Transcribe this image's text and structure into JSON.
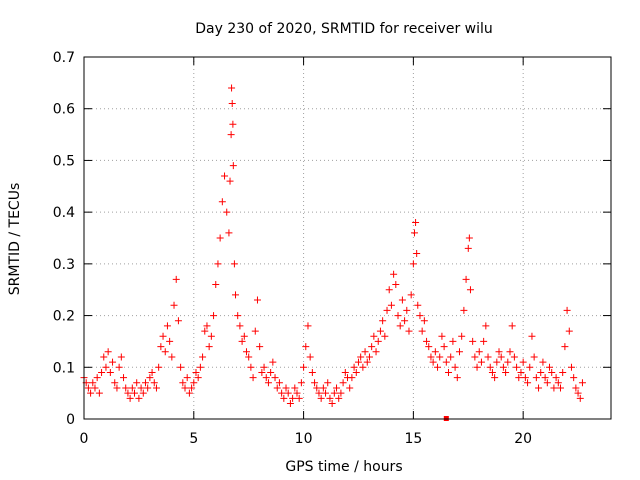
{
  "chart_data": {
    "type": "scatter",
    "title": "Day 230 of 2020, SRMTID for receiver wilu",
    "xlabel": "GPS time / hours",
    "ylabel": "SRMTID / TECUs",
    "xlim": [
      0,
      24
    ],
    "ylim": [
      0,
      0.7
    ],
    "xticks": [
      0,
      5,
      10,
      15,
      20
    ],
    "yticks": [
      0,
      0.1,
      0.2,
      0.3,
      0.4,
      0.5,
      0.6,
      0.7
    ],
    "xtick_labels": [
      "0",
      "5",
      "10",
      "15",
      "20"
    ],
    "ytick_labels": [
      "0",
      "0.1",
      "0.2",
      "0.3",
      "0.4",
      "0.5",
      "0.6",
      "0.7"
    ],
    "grid": true,
    "marker": "+",
    "marker_color": "#ff0000",
    "square_marker": {
      "x": 16.5,
      "y": 0.0
    },
    "series": [
      {
        "name": "SRMTID",
        "points": [
          [
            0.0,
            0.08
          ],
          [
            0.1,
            0.07
          ],
          [
            0.2,
            0.06
          ],
          [
            0.3,
            0.05
          ],
          [
            0.4,
            0.07
          ],
          [
            0.5,
            0.06
          ],
          [
            0.6,
            0.08
          ],
          [
            0.7,
            0.05
          ],
          [
            0.8,
            0.09
          ],
          [
            0.9,
            0.12
          ],
          [
            1.0,
            0.1
          ],
          [
            1.1,
            0.13
          ],
          [
            1.2,
            0.09
          ],
          [
            1.3,
            0.11
          ],
          [
            1.4,
            0.07
          ],
          [
            1.5,
            0.06
          ],
          [
            1.6,
            0.1
          ],
          [
            1.7,
            0.12
          ],
          [
            1.8,
            0.08
          ],
          [
            1.9,
            0.06
          ],
          [
            2.0,
            0.05
          ],
          [
            2.1,
            0.04
          ],
          [
            2.2,
            0.06
          ],
          [
            2.3,
            0.05
          ],
          [
            2.4,
            0.07
          ],
          [
            2.5,
            0.04
          ],
          [
            2.6,
            0.06
          ],
          [
            2.7,
            0.05
          ],
          [
            2.8,
            0.07
          ],
          [
            2.9,
            0.06
          ],
          [
            3.0,
            0.08
          ],
          [
            3.1,
            0.09
          ],
          [
            3.2,
            0.07
          ],
          [
            3.3,
            0.06
          ],
          [
            3.4,
            0.1
          ],
          [
            3.5,
            0.14
          ],
          [
            3.6,
            0.16
          ],
          [
            3.7,
            0.13
          ],
          [
            3.8,
            0.18
          ],
          [
            3.9,
            0.15
          ],
          [
            4.0,
            0.12
          ],
          [
            4.1,
            0.22
          ],
          [
            4.2,
            0.27
          ],
          [
            4.3,
            0.19
          ],
          [
            4.4,
            0.1
          ],
          [
            4.5,
            0.07
          ],
          [
            4.6,
            0.06
          ],
          [
            4.7,
            0.08
          ],
          [
            4.8,
            0.05
          ],
          [
            4.9,
            0.06
          ],
          [
            5.0,
            0.07
          ],
          [
            5.1,
            0.09
          ],
          [
            5.2,
            0.08
          ],
          [
            5.3,
            0.1
          ],
          [
            5.4,
            0.12
          ],
          [
            5.5,
            0.17
          ],
          [
            5.6,
            0.18
          ],
          [
            5.7,
            0.14
          ],
          [
            5.8,
            0.16
          ],
          [
            5.9,
            0.2
          ],
          [
            6.0,
            0.26
          ],
          [
            6.1,
            0.3
          ],
          [
            6.2,
            0.35
          ],
          [
            6.3,
            0.42
          ],
          [
            6.4,
            0.47
          ],
          [
            6.5,
            0.4
          ],
          [
            6.6,
            0.36
          ],
          [
            6.65,
            0.46
          ],
          [
            6.7,
            0.55
          ],
          [
            6.72,
            0.64
          ],
          [
            6.75,
            0.61
          ],
          [
            6.78,
            0.57
          ],
          [
            6.8,
            0.49
          ],
          [
            6.85,
            0.3
          ],
          [
            6.9,
            0.24
          ],
          [
            7.0,
            0.2
          ],
          [
            7.1,
            0.18
          ],
          [
            7.2,
            0.15
          ],
          [
            7.3,
            0.16
          ],
          [
            7.4,
            0.13
          ],
          [
            7.5,
            0.12
          ],
          [
            7.6,
            0.1
          ],
          [
            7.7,
            0.08
          ],
          [
            7.8,
            0.17
          ],
          [
            7.9,
            0.23
          ],
          [
            8.0,
            0.14
          ],
          [
            8.1,
            0.09
          ],
          [
            8.2,
            0.1
          ],
          [
            8.3,
            0.08
          ],
          [
            8.4,
            0.07
          ],
          [
            8.5,
            0.09
          ],
          [
            8.6,
            0.11
          ],
          [
            8.7,
            0.08
          ],
          [
            8.8,
            0.06
          ],
          [
            8.9,
            0.07
          ],
          [
            9.0,
            0.05
          ],
          [
            9.1,
            0.04
          ],
          [
            9.2,
            0.06
          ],
          [
            9.3,
            0.05
          ],
          [
            9.4,
            0.03
          ],
          [
            9.5,
            0.04
          ],
          [
            9.6,
            0.06
          ],
          [
            9.7,
            0.05
          ],
          [
            9.8,
            0.04
          ],
          [
            9.9,
            0.07
          ],
          [
            10.0,
            0.1
          ],
          [
            10.1,
            0.14
          ],
          [
            10.2,
            0.18
          ],
          [
            10.3,
            0.12
          ],
          [
            10.4,
            0.09
          ],
          [
            10.5,
            0.07
          ],
          [
            10.6,
            0.06
          ],
          [
            10.7,
            0.05
          ],
          [
            10.8,
            0.04
          ],
          [
            10.9,
            0.06
          ],
          [
            11.0,
            0.05
          ],
          [
            11.1,
            0.07
          ],
          [
            11.2,
            0.04
          ],
          [
            11.3,
            0.03
          ],
          [
            11.4,
            0.05
          ],
          [
            11.5,
            0.06
          ],
          [
            11.6,
            0.04
          ],
          [
            11.7,
            0.05
          ],
          [
            11.8,
            0.07
          ],
          [
            11.9,
            0.09
          ],
          [
            12.0,
            0.08
          ],
          [
            12.1,
            0.06
          ],
          [
            12.2,
            0.08
          ],
          [
            12.3,
            0.1
          ],
          [
            12.4,
            0.09
          ],
          [
            12.5,
            0.11
          ],
          [
            12.6,
            0.12
          ],
          [
            12.7,
            0.1
          ],
          [
            12.8,
            0.13
          ],
          [
            12.9,
            0.11
          ],
          [
            13.0,
            0.12
          ],
          [
            13.1,
            0.14
          ],
          [
            13.2,
            0.16
          ],
          [
            13.3,
            0.13
          ],
          [
            13.4,
            0.15
          ],
          [
            13.5,
            0.17
          ],
          [
            13.6,
            0.19
          ],
          [
            13.7,
            0.16
          ],
          [
            13.8,
            0.21
          ],
          [
            13.9,
            0.25
          ],
          [
            14.0,
            0.22
          ],
          [
            14.1,
            0.28
          ],
          [
            14.2,
            0.26
          ],
          [
            14.3,
            0.2
          ],
          [
            14.4,
            0.18
          ],
          [
            14.5,
            0.23
          ],
          [
            14.6,
            0.19
          ],
          [
            14.7,
            0.21
          ],
          [
            14.8,
            0.17
          ],
          [
            14.9,
            0.24
          ],
          [
            15.0,
            0.3
          ],
          [
            15.05,
            0.36
          ],
          [
            15.1,
            0.38
          ],
          [
            15.15,
            0.32
          ],
          [
            15.2,
            0.22
          ],
          [
            15.3,
            0.2
          ],
          [
            15.4,
            0.17
          ],
          [
            15.5,
            0.19
          ],
          [
            15.6,
            0.15
          ],
          [
            15.7,
            0.14
          ],
          [
            15.8,
            0.12
          ],
          [
            15.9,
            0.11
          ],
          [
            16.0,
            0.13
          ],
          [
            16.1,
            0.1
          ],
          [
            16.2,
            0.12
          ],
          [
            16.3,
            0.16
          ],
          [
            16.4,
            0.14
          ],
          [
            16.5,
            0.11
          ],
          [
            16.6,
            0.09
          ],
          [
            16.7,
            0.12
          ],
          [
            16.8,
            0.15
          ],
          [
            16.9,
            0.1
          ],
          [
            17.0,
            0.08
          ],
          [
            17.1,
            0.13
          ],
          [
            17.2,
            0.16
          ],
          [
            17.3,
            0.21
          ],
          [
            17.4,
            0.27
          ],
          [
            17.5,
            0.33
          ],
          [
            17.55,
            0.35
          ],
          [
            17.6,
            0.25
          ],
          [
            17.7,
            0.15
          ],
          [
            17.8,
            0.12
          ],
          [
            17.9,
            0.1
          ],
          [
            18.0,
            0.13
          ],
          [
            18.1,
            0.11
          ],
          [
            18.2,
            0.15
          ],
          [
            18.3,
            0.18
          ],
          [
            18.4,
            0.12
          ],
          [
            18.5,
            0.1
          ],
          [
            18.6,
            0.09
          ],
          [
            18.7,
            0.08
          ],
          [
            18.8,
            0.11
          ],
          [
            18.9,
            0.13
          ],
          [
            19.0,
            0.12
          ],
          [
            19.1,
            0.1
          ],
          [
            19.2,
            0.09
          ],
          [
            19.3,
            0.11
          ],
          [
            19.4,
            0.13
          ],
          [
            19.5,
            0.18
          ],
          [
            19.6,
            0.12
          ],
          [
            19.7,
            0.1
          ],
          [
            19.8,
            0.08
          ],
          [
            19.9,
            0.09
          ],
          [
            20.0,
            0.11
          ],
          [
            20.1,
            0.08
          ],
          [
            20.2,
            0.07
          ],
          [
            20.3,
            0.1
          ],
          [
            20.4,
            0.16
          ],
          [
            20.5,
            0.12
          ],
          [
            20.6,
            0.08
          ],
          [
            20.7,
            0.06
          ],
          [
            20.8,
            0.09
          ],
          [
            20.9,
            0.11
          ],
          [
            21.0,
            0.08
          ],
          [
            21.1,
            0.07
          ],
          [
            21.2,
            0.1
          ],
          [
            21.3,
            0.09
          ],
          [
            21.4,
            0.06
          ],
          [
            21.5,
            0.08
          ],
          [
            21.6,
            0.07
          ],
          [
            21.7,
            0.06
          ],
          [
            21.8,
            0.09
          ],
          [
            21.9,
            0.14
          ],
          [
            22.0,
            0.21
          ],
          [
            22.1,
            0.17
          ],
          [
            22.2,
            0.1
          ],
          [
            22.3,
            0.08
          ],
          [
            22.4,
            0.06
          ],
          [
            22.5,
            0.05
          ],
          [
            22.6,
            0.04
          ],
          [
            22.7,
            0.07
          ]
        ]
      }
    ]
  }
}
